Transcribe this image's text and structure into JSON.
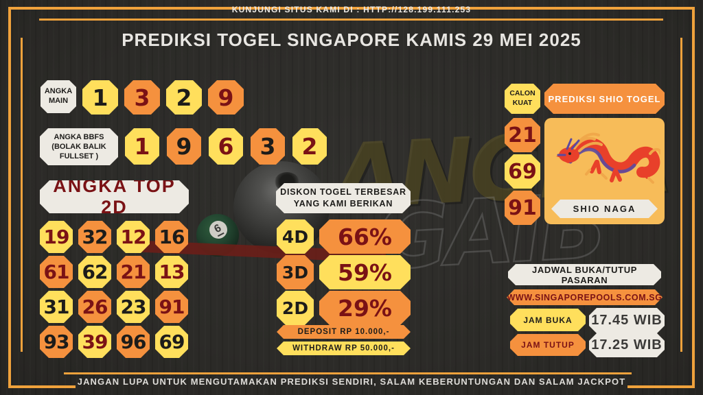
{
  "page": {
    "visit_url_text": "KUNJUNGI SITUS KAMI DI : HTTP://128.199.111.253",
    "title": "PREDIKSI TOGEL SINGAPORE KAMIS 29 MEI 2025",
    "footer_text": "JANGAN LUPA UNTUK MENGUTAMAKAN PREDIKSI SENDIRI, SALAM KEBERUNTUNGAN DAN SALAM JACKPOT"
  },
  "watermark": {
    "line1": "ANGKA",
    "line2": "GAIB"
  },
  "decor": {
    "ball_number": "6"
  },
  "angka_main": {
    "label": "ANGKA MAIN",
    "numbers": [
      {
        "value": "1",
        "bg": "yellow",
        "fg": "black"
      },
      {
        "value": "3",
        "bg": "orange",
        "fg": "red"
      },
      {
        "value": "2",
        "bg": "yellow",
        "fg": "black"
      },
      {
        "value": "9",
        "bg": "orange",
        "fg": "red"
      }
    ]
  },
  "angka_bbfs": {
    "label": "ANGKA BBFS (BOLAK BALIK FULLSET )",
    "numbers": [
      {
        "value": "1",
        "bg": "yellow",
        "fg": "red"
      },
      {
        "value": "9",
        "bg": "orange",
        "fg": "black"
      },
      {
        "value": "6",
        "bg": "yellow",
        "fg": "red"
      },
      {
        "value": "3",
        "bg": "orange",
        "fg": "black"
      },
      {
        "value": "2",
        "bg": "yellow",
        "fg": "red"
      }
    ]
  },
  "angka_top_2d": {
    "label": "ANGKA TOP 2D",
    "rows": [
      [
        {
          "value": "19",
          "bg": "yellow",
          "fg": "red"
        },
        {
          "value": "32",
          "bg": "orange",
          "fg": "black"
        },
        {
          "value": "12",
          "bg": "yellow",
          "fg": "red"
        },
        {
          "value": "16",
          "bg": "orange",
          "fg": "black"
        }
      ],
      [
        {
          "value": "61",
          "bg": "orange",
          "fg": "red"
        },
        {
          "value": "62",
          "bg": "yellow",
          "fg": "black"
        },
        {
          "value": "21",
          "bg": "orange",
          "fg": "red"
        },
        {
          "value": "13",
          "bg": "yellow",
          "fg": "red"
        }
      ],
      [
        {
          "value": "31",
          "bg": "yellow",
          "fg": "black"
        },
        {
          "value": "26",
          "bg": "orange",
          "fg": "red"
        },
        {
          "value": "23",
          "bg": "yellow",
          "fg": "black"
        },
        {
          "value": "91",
          "bg": "orange",
          "fg": "red"
        }
      ],
      [
        {
          "value": "93",
          "bg": "orange",
          "fg": "black"
        },
        {
          "value": "39",
          "bg": "yellow",
          "fg": "red"
        },
        {
          "value": "96",
          "bg": "orange",
          "fg": "black"
        },
        {
          "value": "69",
          "bg": "yellow",
          "fg": "black"
        }
      ]
    ]
  },
  "diskon": {
    "header": "DISKON TOGEL TERBESAR YANG KAMI BERIKAN",
    "rows": [
      {
        "label": "4D",
        "label_bg": "yellow",
        "value": "66%",
        "value_bg": "orange"
      },
      {
        "label": "3D",
        "label_bg": "orange",
        "value": "59%",
        "value_bg": "yellow"
      },
      {
        "label": "2D",
        "label_bg": "yellow",
        "value": "29%",
        "value_bg": "orange"
      }
    ],
    "deposit_text": "DEPOSIT RP 10.000,-",
    "withdraw_text": "WITHDRAW RP 50.000,-"
  },
  "shio": {
    "calon_kuat_label": "CALON KUAT",
    "header": "PREDIKSI SHIO TOGEL",
    "numbers": [
      {
        "value": "21",
        "bg": "orange",
        "fg": "red"
      },
      {
        "value": "69",
        "bg": "yellow",
        "fg": "red"
      },
      {
        "value": "91",
        "bg": "orange",
        "fg": "red"
      }
    ],
    "name": "SHIO NAGA"
  },
  "jadwal": {
    "header": "JADWAL BUKA/TUTUP PASARAN",
    "website": "WWW.SINGAPOREPOOLS.COM.SG",
    "jam_buka_label": "JAM BUKA",
    "jam_buka_value": "17.45 WIB",
    "jam_tutup_label": "JAM TUTUP",
    "jam_tutup_value": "17.25 WIB"
  },
  "colors": {
    "background": "#2d2c29",
    "yellow": "#ffdf5c",
    "orange": "#f5913e",
    "badge_white": "#edeae3",
    "dark_red": "#7a1215",
    "gold_frame": "#f0a23c",
    "shio_panel": "#f7bc59",
    "dragon_red": "#e8402a",
    "text_light": "#e8e6e2"
  }
}
